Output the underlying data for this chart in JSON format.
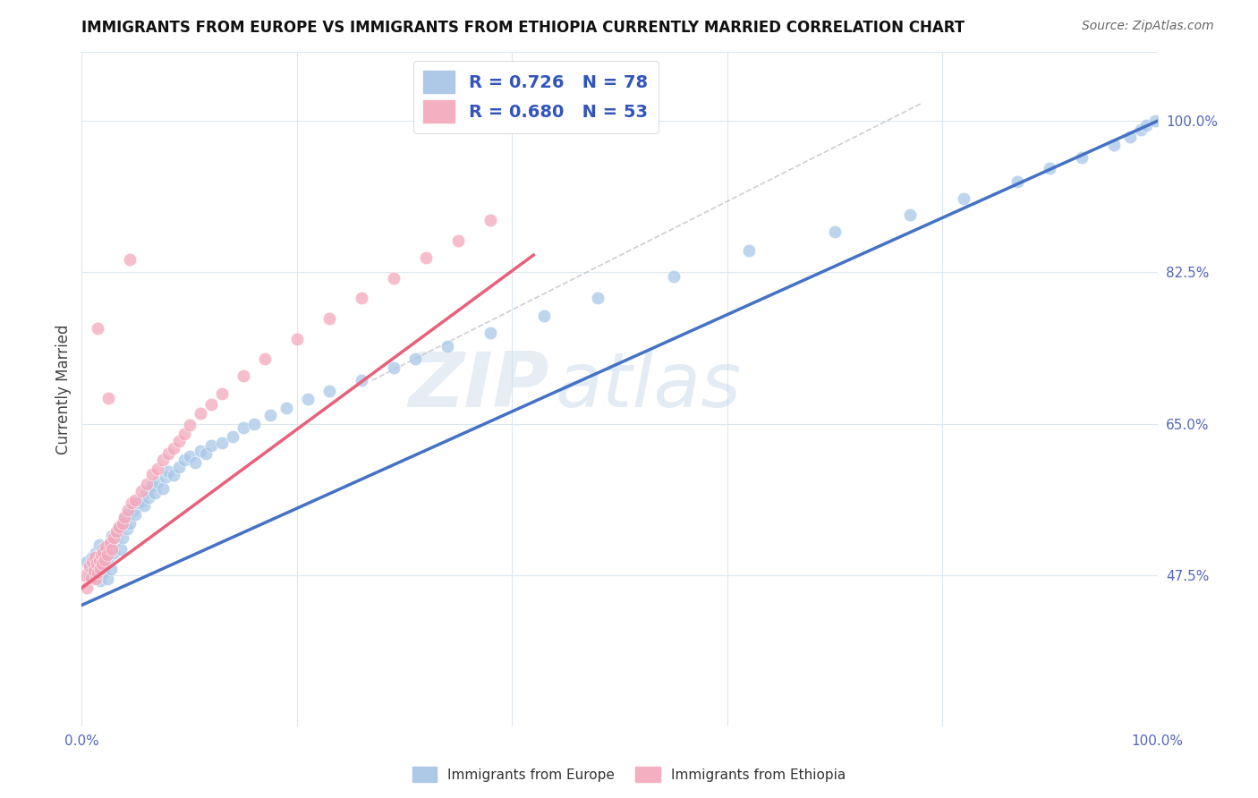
{
  "title": "IMMIGRANTS FROM EUROPE VS IMMIGRANTS FROM ETHIOPIA CURRENTLY MARRIED CORRELATION CHART",
  "source": "Source: ZipAtlas.com",
  "ylabel": "Currently Married",
  "xlim": [
    0.0,
    1.0
  ],
  "ylim": [
    0.3,
    1.08
  ],
  "x_ticks": [
    0.0,
    0.2,
    0.4,
    0.6,
    0.8,
    1.0
  ],
  "x_tick_labels": [
    "0.0%",
    "",
    "",
    "",
    "",
    "100.0%"
  ],
  "y_tick_labels_right": [
    "47.5%",
    "65.0%",
    "82.5%",
    "100.0%"
  ],
  "y_tick_vals_right": [
    0.475,
    0.65,
    0.825,
    1.0
  ],
  "europe_color": "#a8c8e8",
  "ethiopia_color": "#f4a8bc",
  "europe_line_color": "#4472c4",
  "ethiopia_line_color": "#e8607a",
  "dashed_line_color": "#c8c8d0",
  "watermark_zip": "ZIP",
  "watermark_atlas": "atlas",
  "background_color": "#ffffff",
  "grid_color": "#dce8f0",
  "europe_line_x0": 0.0,
  "europe_line_y0": 0.44,
  "europe_line_x1": 1.0,
  "europe_line_y1": 1.0,
  "ethiopia_line_x0": 0.0,
  "ethiopia_line_y0": 0.46,
  "ethiopia_line_x1": 0.42,
  "ethiopia_line_y1": 0.845,
  "dash_line_x0": 0.27,
  "dash_line_y0": 0.7,
  "dash_line_x1": 0.78,
  "dash_line_y1": 1.02,
  "scatter_europe_x": [
    0.005,
    0.008,
    0.01,
    0.012,
    0.013,
    0.015,
    0.016,
    0.017,
    0.018,
    0.019,
    0.02,
    0.021,
    0.022,
    0.023,
    0.024,
    0.025,
    0.026,
    0.027,
    0.028,
    0.03,
    0.031,
    0.033,
    0.035,
    0.036,
    0.038,
    0.04,
    0.042,
    0.043,
    0.045,
    0.048,
    0.05,
    0.052,
    0.055,
    0.058,
    0.06,
    0.062,
    0.065,
    0.068,
    0.07,
    0.075,
    0.078,
    0.08,
    0.085,
    0.09,
    0.095,
    0.1,
    0.105,
    0.11,
    0.115,
    0.12,
    0.13,
    0.14,
    0.15,
    0.16,
    0.175,
    0.19,
    0.21,
    0.23,
    0.26,
    0.29,
    0.31,
    0.34,
    0.38,
    0.43,
    0.48,
    0.55,
    0.62,
    0.7,
    0.77,
    0.82,
    0.87,
    0.9,
    0.93,
    0.96,
    0.975,
    0.985,
    0.99,
    0.998
  ],
  "scatter_europe_y": [
    0.49,
    0.475,
    0.495,
    0.48,
    0.5,
    0.485,
    0.51,
    0.468,
    0.492,
    0.505,
    0.478,
    0.488,
    0.498,
    0.508,
    0.47,
    0.495,
    0.512,
    0.482,
    0.52,
    0.5,
    0.515,
    0.525,
    0.53,
    0.505,
    0.518,
    0.54,
    0.528,
    0.545,
    0.535,
    0.55,
    0.545,
    0.558,
    0.56,
    0.555,
    0.572,
    0.565,
    0.578,
    0.57,
    0.582,
    0.575,
    0.588,
    0.595,
    0.59,
    0.6,
    0.608,
    0.612,
    0.605,
    0.618,
    0.615,
    0.625,
    0.628,
    0.635,
    0.645,
    0.65,
    0.66,
    0.668,
    0.678,
    0.688,
    0.7,
    0.715,
    0.725,
    0.74,
    0.755,
    0.775,
    0.795,
    0.82,
    0.85,
    0.872,
    0.892,
    0.91,
    0.93,
    0.945,
    0.958,
    0.972,
    0.982,
    0.99,
    0.995,
    1.0
  ],
  "scatter_ethiopia_x": [
    0.003,
    0.005,
    0.007,
    0.009,
    0.01,
    0.011,
    0.012,
    0.013,
    0.014,
    0.015,
    0.016,
    0.017,
    0.018,
    0.019,
    0.02,
    0.021,
    0.022,
    0.024,
    0.026,
    0.028,
    0.03,
    0.032,
    0.035,
    0.038,
    0.04,
    0.043,
    0.046,
    0.05,
    0.055,
    0.06,
    0.065,
    0.07,
    0.075,
    0.08,
    0.085,
    0.09,
    0.095,
    0.1,
    0.11,
    0.12,
    0.13,
    0.15,
    0.17,
    0.2,
    0.23,
    0.26,
    0.29,
    0.32,
    0.35,
    0.38,
    0.015,
    0.025,
    0.045
  ],
  "scatter_ethiopia_y": [
    0.475,
    0.46,
    0.485,
    0.472,
    0.49,
    0.48,
    0.495,
    0.47,
    0.488,
    0.478,
    0.492,
    0.482,
    0.498,
    0.488,
    0.502,
    0.492,
    0.508,
    0.498,
    0.512,
    0.505,
    0.518,
    0.525,
    0.53,
    0.535,
    0.542,
    0.55,
    0.558,
    0.562,
    0.572,
    0.58,
    0.592,
    0.598,
    0.608,
    0.615,
    0.622,
    0.63,
    0.638,
    0.648,
    0.662,
    0.672,
    0.685,
    0.705,
    0.725,
    0.748,
    0.772,
    0.795,
    0.818,
    0.842,
    0.862,
    0.885,
    0.76,
    0.68,
    0.84
  ]
}
